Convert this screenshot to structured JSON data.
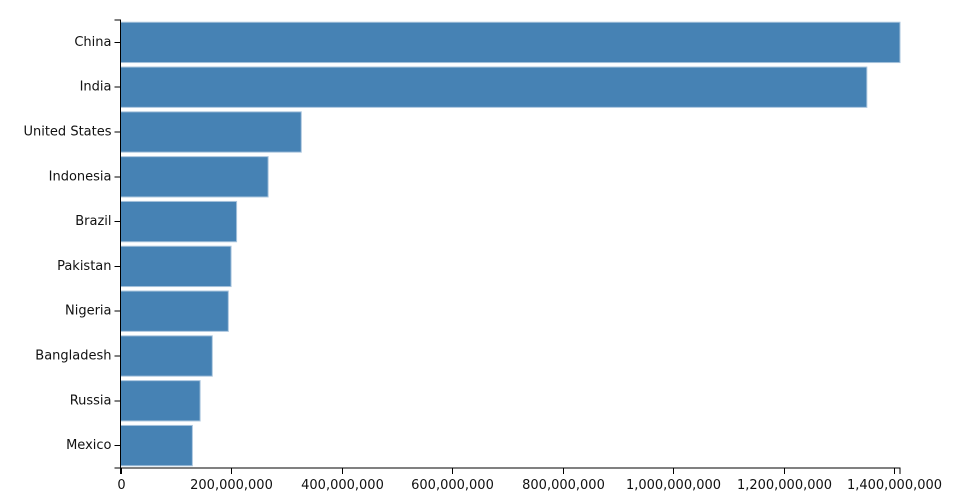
{
  "chart_data": {
    "type": "bar",
    "orientation": "horizontal",
    "title": "",
    "xlabel": "",
    "ylabel": "",
    "categories": [
      "China",
      "India",
      "United States",
      "Indonesia",
      "Brazil",
      "Pakistan",
      "Nigeria",
      "Bangladesh",
      "Russia",
      "Mexico"
    ],
    "values": [
      1410000000,
      1350000000,
      327000000,
      267000000,
      210000000,
      200000000,
      195000000,
      166000000,
      144000000,
      130000000
    ],
    "xlim": [
      0,
      1410000000
    ],
    "xticks": [
      0,
      200000000,
      400000000,
      600000000,
      800000000,
      1000000000,
      1200000000,
      1400000000
    ],
    "xtick_labels": [
      "0",
      "200,000,000",
      "400,000,000",
      "600,000,000",
      "800,000,000",
      "1,000,000,000",
      "1,200,000,000",
      "1,400,000,000"
    ],
    "bar_color": "#4682b4",
    "grid": false
  }
}
